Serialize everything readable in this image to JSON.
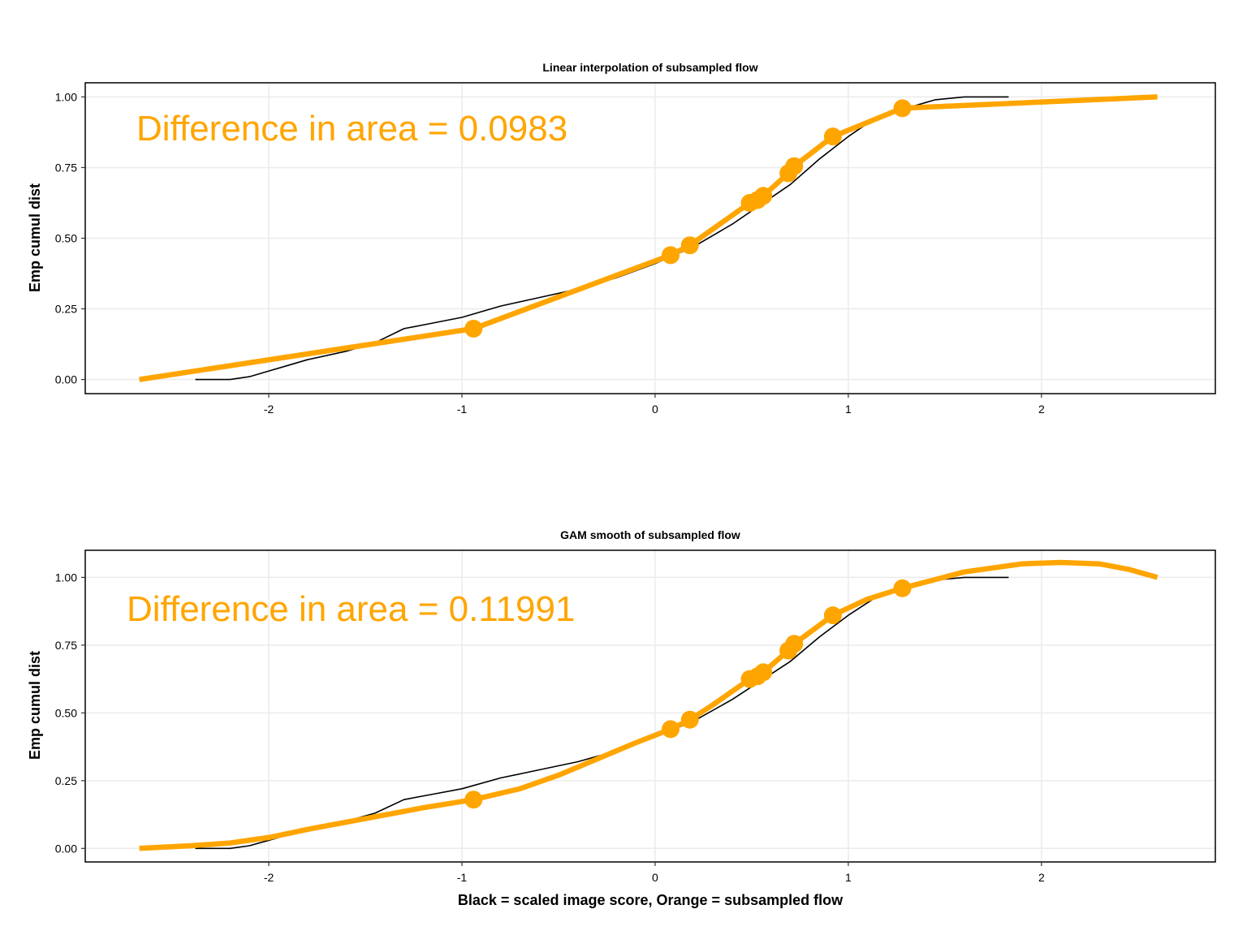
{
  "colors": {
    "accent": "#FFA500",
    "reference": "#000000",
    "grid": "#EBEBEB"
  },
  "xlabel": "Black = scaled image score, Orange = subsampled flow",
  "chart_data": [
    {
      "type": "line",
      "title": "Linear interpolation of subsampled flow",
      "ylabel": "Emp cumul dist",
      "annotation": "Difference in area = 0.0983",
      "xlim": [
        -2.95,
        2.9
      ],
      "ylim": [
        -0.05,
        1.05
      ],
      "xticks": [
        -2,
        -1,
        0,
        1,
        2
      ],
      "xtick_labels": [
        "-2",
        "-1",
        "0",
        "1",
        "2"
      ],
      "yticks": [
        0,
        0.25,
        0.5,
        0.75,
        1.0
      ],
      "ytick_labels": [
        "0.00",
        "0.25",
        "0.50",
        "0.75",
        "1.00"
      ],
      "grid": true,
      "series": [
        {
          "role": "scaled image score",
          "color": "#000000",
          "x": [
            -2.38,
            -2.3,
            -2.2,
            -2.1,
            -2.0,
            -1.9,
            -1.8,
            -1.6,
            -1.45,
            -1.3,
            -1.15,
            -1.0,
            -0.8,
            -0.6,
            -0.4,
            -0.2,
            0.0,
            0.2,
            0.4,
            0.55,
            0.7,
            0.85,
            1.0,
            1.15,
            1.3,
            1.45,
            1.6,
            1.83
          ],
          "y": [
            0.0,
            0.0,
            0.0,
            0.01,
            0.03,
            0.05,
            0.07,
            0.1,
            0.13,
            0.18,
            0.2,
            0.22,
            0.26,
            0.29,
            0.32,
            0.36,
            0.41,
            0.47,
            0.55,
            0.62,
            0.69,
            0.78,
            0.86,
            0.93,
            0.96,
            0.99,
            1.0,
            1.0
          ]
        },
        {
          "role": "subsampled flow",
          "color": "#FFA500",
          "x": [
            -2.67,
            -0.94,
            0.08,
            0.18,
            0.49,
            0.53,
            0.56,
            0.69,
            0.72,
            0.92,
            1.28,
            2.6
          ],
          "y": [
            0.0,
            0.18,
            0.44,
            0.475,
            0.625,
            0.635,
            0.65,
            0.73,
            0.755,
            0.86,
            0.96,
            1.0
          ]
        }
      ],
      "points": {
        "x": [
          -0.94,
          0.08,
          0.18,
          0.49,
          0.53,
          0.56,
          0.69,
          0.72,
          0.92,
          1.28
        ],
        "y": [
          0.18,
          0.44,
          0.475,
          0.625,
          0.635,
          0.65,
          0.73,
          0.755,
          0.86,
          0.96
        ]
      }
    },
    {
      "type": "line",
      "title": "GAM smooth of subsampled flow",
      "ylabel": "Emp cumul dist",
      "annotation": "Difference in area = 0.11991",
      "xlim": [
        -2.95,
        2.9
      ],
      "ylim": [
        -0.05,
        1.1
      ],
      "xticks": [
        -2,
        -1,
        0,
        1,
        2
      ],
      "xtick_labels": [
        "-2",
        "-1",
        "0",
        "1",
        "2"
      ],
      "yticks": [
        0,
        0.25,
        0.5,
        0.75,
        1.0
      ],
      "ytick_labels": [
        "0.00",
        "0.25",
        "0.50",
        "0.75",
        "1.00"
      ],
      "grid": true,
      "series": [
        {
          "role": "scaled image score",
          "color": "#000000",
          "x": [
            -2.38,
            -2.3,
            -2.2,
            -2.1,
            -2.0,
            -1.9,
            -1.8,
            -1.6,
            -1.45,
            -1.3,
            -1.15,
            -1.0,
            -0.8,
            -0.6,
            -0.4,
            -0.2,
            0.0,
            0.2,
            0.4,
            0.55,
            0.7,
            0.85,
            1.0,
            1.15,
            1.3,
            1.45,
            1.6,
            1.83
          ],
          "y": [
            0.0,
            0.0,
            0.0,
            0.01,
            0.03,
            0.05,
            0.07,
            0.1,
            0.13,
            0.18,
            0.2,
            0.22,
            0.26,
            0.29,
            0.32,
            0.36,
            0.41,
            0.47,
            0.55,
            0.62,
            0.69,
            0.78,
            0.86,
            0.93,
            0.96,
            0.99,
            1.0,
            1.0
          ]
        },
        {
          "role": "subsampled flow",
          "color": "#FFA500",
          "x": [
            -2.67,
            -2.4,
            -2.2,
            -2.0,
            -1.8,
            -1.5,
            -1.2,
            -0.94,
            -0.7,
            -0.5,
            -0.3,
            -0.1,
            0.08,
            0.18,
            0.3,
            0.49,
            0.53,
            0.56,
            0.69,
            0.72,
            0.92,
            1.1,
            1.28,
            1.6,
            1.9,
            2.1,
            2.3,
            2.45,
            2.6
          ],
          "y": [
            0.0,
            0.01,
            0.02,
            0.04,
            0.07,
            0.11,
            0.15,
            0.18,
            0.22,
            0.27,
            0.33,
            0.39,
            0.44,
            0.475,
            0.53,
            0.625,
            0.635,
            0.65,
            0.73,
            0.755,
            0.86,
            0.92,
            0.96,
            1.02,
            1.05,
            1.055,
            1.05,
            1.03,
            1.0
          ]
        }
      ],
      "points": {
        "x": [
          -0.94,
          0.08,
          0.18,
          0.49,
          0.53,
          0.56,
          0.69,
          0.72,
          0.92,
          1.28
        ],
        "y": [
          0.18,
          0.44,
          0.475,
          0.625,
          0.635,
          0.65,
          0.73,
          0.755,
          0.86,
          0.96
        ]
      }
    }
  ]
}
